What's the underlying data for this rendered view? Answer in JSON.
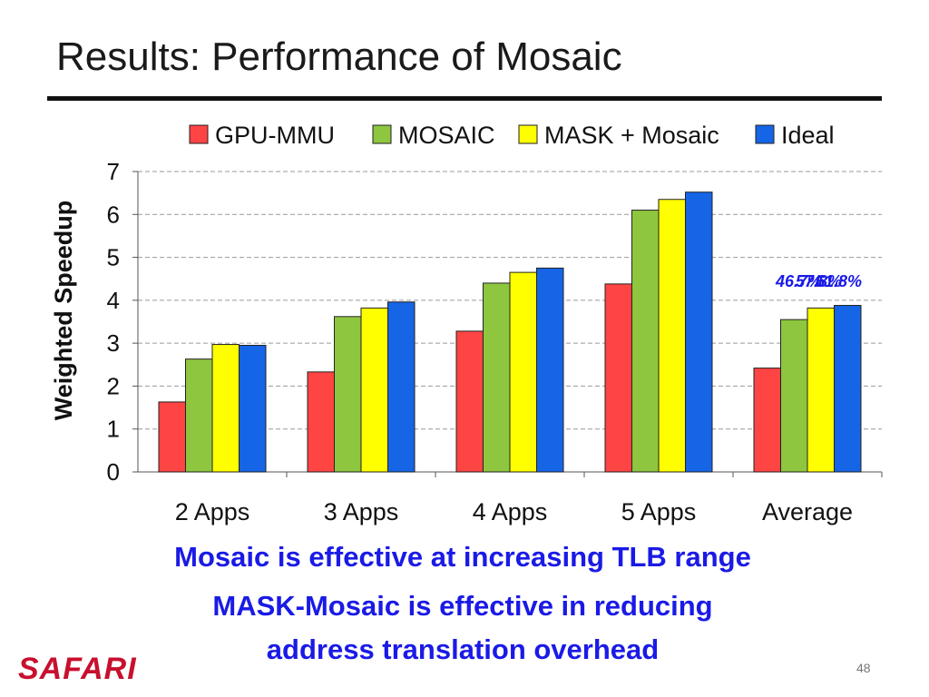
{
  "slide": {
    "title": "Results: Performance of Mosaic",
    "captions": [
      "Mosaic is effective at increasing TLB range",
      "MASK-Mosaic is effective in reducing",
      "address translation overhead"
    ],
    "logo": "SAFARI",
    "page_number": "48"
  },
  "chart_data": {
    "type": "bar",
    "categories": [
      "2 Apps",
      "3 Apps",
      "4 Apps",
      "5 Apps",
      "Average"
    ],
    "series": [
      {
        "name": "GPU-MMU",
        "color": "#ff4444",
        "values": [
          1.63,
          2.33,
          3.28,
          4.38,
          2.42
        ]
      },
      {
        "name": "MOSAIC",
        "color": "#8ec63f",
        "values": [
          2.63,
          3.62,
          4.4,
          6.1,
          3.55
        ]
      },
      {
        "name": "MASK + Mosaic",
        "color": "#ffff00",
        "values": [
          2.97,
          3.82,
          4.65,
          6.35,
          3.82
        ]
      },
      {
        "name": "Ideal",
        "color": "#1565e6",
        "values": [
          2.95,
          3.96,
          4.75,
          6.52,
          3.88
        ]
      }
    ],
    "xlabel": "",
    "ylabel": "Weighted Speedup",
    "ylim": [
      0,
      7
    ],
    "yticks": [
      "0",
      "1",
      "2",
      "3",
      "4",
      "5",
      "6",
      "7"
    ],
    "grid": true,
    "legend_position": "top",
    "annotations": [
      {
        "text": "46.7%",
        "color": "#1a1ae6"
      },
      {
        "text": "57.8%",
        "color": "#1a1ae6"
      },
      {
        "text": "61.8%",
        "color": "#1a1ae6"
      }
    ]
  }
}
